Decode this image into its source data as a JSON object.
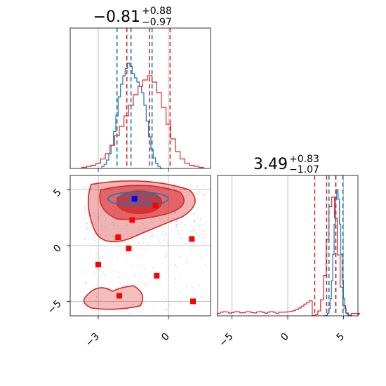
{
  "colors": {
    "blue": "#1f77b4",
    "red": "#d62728",
    "marker_red": "#ff0000",
    "marker_blue": "#0000ff",
    "grid": "#b0b0b0"
  },
  "titles": {
    "x": {
      "main": "−0.81",
      "sup": "+0.88",
      "sub": "−0.97"
    },
    "y": {
      "main": "3.49",
      "sup": "+0.83",
      "sub": "−1.07"
    }
  },
  "chart_data": [
    {
      "panel": "marginal-x",
      "type": "line",
      "style": "step-histogram",
      "xlim": [
        -4.2,
        1.8
      ],
      "grid": true,
      "title": "−0.81 (+0.88, −0.97)",
      "series": [
        {
          "color": "#1f77b4",
          "bins_x": [
            -2.8,
            -2.7,
            -2.6,
            -2.5,
            -2.4,
            -2.3,
            -2.2,
            -2.1,
            -2.0,
            -1.9,
            -1.8,
            -1.7,
            -1.6,
            -1.5,
            -1.4,
            -1.3,
            -1.2,
            -1.1,
            -1.0,
            -0.9,
            -0.8,
            -0.7,
            -0.6,
            -0.5,
            -0.4,
            -0.3
          ],
          "heights": [
            0.02,
            0.04,
            0.08,
            0.14,
            0.22,
            0.35,
            0.5,
            0.68,
            0.8,
            0.88,
            0.95,
            1.0,
            0.97,
            0.9,
            0.86,
            0.82,
            0.78,
            0.72,
            0.6,
            0.45,
            0.3,
            0.18,
            0.1,
            0.05,
            0.02,
            0.0
          ],
          "quantile_lines": [
            -2.2,
            -1.6,
            -0.7
          ]
        },
        {
          "color": "#d62728",
          "bins_x": [
            -3.6,
            -3.4,
            -3.2,
            -3.0,
            -2.8,
            -2.6,
            -2.4,
            -2.2,
            -2.0,
            -1.8,
            -1.6,
            -1.4,
            -1.2,
            -1.0,
            -0.8,
            -0.6,
            -0.4,
            -0.2,
            0.0,
            0.2,
            0.4,
            0.6,
            0.8,
            1.0,
            1.2,
            1.4
          ],
          "heights": [
            0.01,
            0.02,
            0.03,
            0.05,
            0.09,
            0.14,
            0.22,
            0.31,
            0.4,
            0.5,
            0.6,
            0.7,
            0.78,
            0.84,
            0.88,
            0.82,
            0.72,
            0.58,
            0.42,
            0.28,
            0.16,
            0.09,
            0.05,
            0.03,
            0.02,
            0.01
          ],
          "quantile_lines": [
            -1.78,
            -0.81,
            0.07
          ]
        }
      ]
    },
    {
      "panel": "joint",
      "type": "scatter",
      "style": "2d-histogram-contours",
      "xlim": [
        -4.2,
        1.8
      ],
      "ylim": [
        -6.3,
        6.3
      ],
      "grid": true,
      "blue_core": {
        "center": [
          -1.3,
          4.2
        ],
        "span_x": 2.0,
        "span_y": 0.9
      },
      "red_markers": [
        {
          "x": -1.55,
          "y": 2.3
        },
        {
          "x": -0.55,
          "y": 3.6
        },
        {
          "x": -2.15,
          "y": 0.75
        },
        {
          "x": -1.7,
          "y": -0.25
        },
        {
          "x": 1.0,
          "y": 0.6
        },
        {
          "x": -3.0,
          "y": -1.7
        },
        {
          "x": -0.5,
          "y": -2.7
        },
        {
          "x": -2.1,
          "y": -4.5
        },
        {
          "x": 1.05,
          "y": -5.0
        }
      ],
      "blue_markers": [
        {
          "x": -1.45,
          "y": 4.2
        }
      ],
      "x_ticks": [
        "−3",
        "0"
      ],
      "y_ticks": [
        "5",
        "0",
        "−5"
      ]
    },
    {
      "panel": "marginal-y",
      "type": "line",
      "style": "step-histogram",
      "xlim": [
        -6.3,
        6.3
      ],
      "grid": true,
      "title": "3.49 (+0.83, −1.07)",
      "series": [
        {
          "color": "#1f77b4",
          "quantile_lines": [
            3.7,
            4.3,
            4.95
          ]
        },
        {
          "color": "#d62728",
          "quantile_lines": [
            2.42,
            3.49,
            4.32
          ]
        }
      ],
      "x_ticks": [
        "−5",
        "0",
        "5"
      ]
    }
  ]
}
